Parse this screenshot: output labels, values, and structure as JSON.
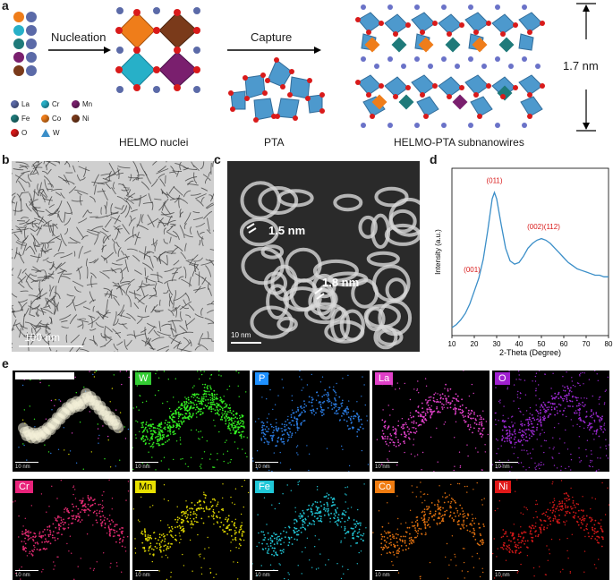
{
  "panels": {
    "a": "a",
    "b": "b",
    "c": "c",
    "d": "d",
    "e": "e"
  },
  "panel_a": {
    "nucleation_label": "Nucleation",
    "capture_label": "Capture",
    "helmo_label": "HELMO nuclei",
    "pta_label": "PTA",
    "subnanowire_label": "HELMO-PTA subnanowires",
    "thickness_label": "1.7 nm",
    "legend": [
      {
        "symbol": "La",
        "color": "#5b6aa8"
      },
      {
        "symbol": "Cr",
        "color": "#27b0c8"
      },
      {
        "symbol": "Mn",
        "color": "#7a1f6e"
      },
      {
        "symbol": "Fe",
        "color": "#1f7a7a"
      },
      {
        "symbol": "Co",
        "color": "#ef7d1a"
      },
      {
        "symbol": "Ni",
        "color": "#7a3a1a"
      },
      {
        "symbol": "O",
        "color": "#d91a1a"
      },
      {
        "symbol": "W",
        "color": "#3a8ec8"
      }
    ]
  },
  "panel_b": {
    "scale_label": "100 nm"
  },
  "panel_c": {
    "label1": "1.5 nm",
    "label2": "1.8 nm",
    "scale_label": "10 nm"
  },
  "chart_data": {
    "type": "line",
    "xlabel": "2-Theta (Degree)",
    "ylabel": "Intensity (a.u.)",
    "xlim": [
      10,
      80
    ],
    "x_ticks": [
      10,
      20,
      30,
      40,
      50,
      60,
      70,
      80
    ],
    "x": [
      10,
      12,
      14,
      16,
      18,
      20,
      22,
      24,
      26,
      28,
      29,
      30,
      32,
      34,
      36,
      38,
      40,
      42,
      44,
      46,
      48,
      50,
      52,
      54,
      56,
      58,
      60,
      62,
      64,
      66,
      68,
      70,
      72,
      74,
      76,
      78,
      80
    ],
    "y": [
      0.05,
      0.07,
      0.1,
      0.14,
      0.2,
      0.28,
      0.36,
      0.48,
      0.66,
      0.86,
      0.9,
      0.86,
      0.7,
      0.55,
      0.47,
      0.45,
      0.46,
      0.5,
      0.55,
      0.58,
      0.6,
      0.61,
      0.6,
      0.58,
      0.55,
      0.52,
      0.49,
      0.46,
      0.44,
      0.42,
      0.41,
      0.4,
      0.39,
      0.38,
      0.38,
      0.37,
      0.37
    ],
    "color": "#3a8ec8",
    "annotations": [
      {
        "text": "(001)",
        "x": 19,
        "y": 0.4
      },
      {
        "text": "(011)",
        "x": 29,
        "y": 0.96
      },
      {
        "text": "(002)(112)",
        "x": 51,
        "y": 0.67
      }
    ],
    "annotation_color": "#d91a1a"
  },
  "panel_e": {
    "maps": [
      {
        "tag": "",
        "tag_color": "#000000",
        "dot_color": "#ffffff",
        "scale": "10 nm",
        "composite": true
      },
      {
        "tag": "W",
        "tag_color": "#33cc33",
        "dot_color": "#33ee22",
        "scale": "10 nm"
      },
      {
        "tag": "P",
        "tag_color": "#1e90ff",
        "dot_color": "#2a7adf",
        "scale": "10 nm"
      },
      {
        "tag": "La",
        "tag_color": "#e040c8",
        "dot_color": "#e040c8",
        "scale": "10 nm"
      },
      {
        "tag": "O",
        "tag_color": "#a020d0",
        "dot_color": "#9a28d0",
        "scale": "10 nm"
      },
      {
        "tag": "Cr",
        "tag_color": "#e8237a",
        "dot_color": "#e02a70",
        "scale": "10 nm"
      },
      {
        "tag": "Mn",
        "tag_color": "#e8e000",
        "dot_color": "#d8d000",
        "scale": "10 nm"
      },
      {
        "tag": "Fe",
        "tag_color": "#20c8d8",
        "dot_color": "#20c0d0",
        "scale": "10 nm"
      },
      {
        "tag": "Co",
        "tag_color": "#f07c10",
        "dot_color": "#e07010",
        "scale": "10 nm"
      },
      {
        "tag": "Ni",
        "tag_color": "#e01818",
        "dot_color": "#d01818",
        "scale": "10 nm"
      }
    ]
  }
}
